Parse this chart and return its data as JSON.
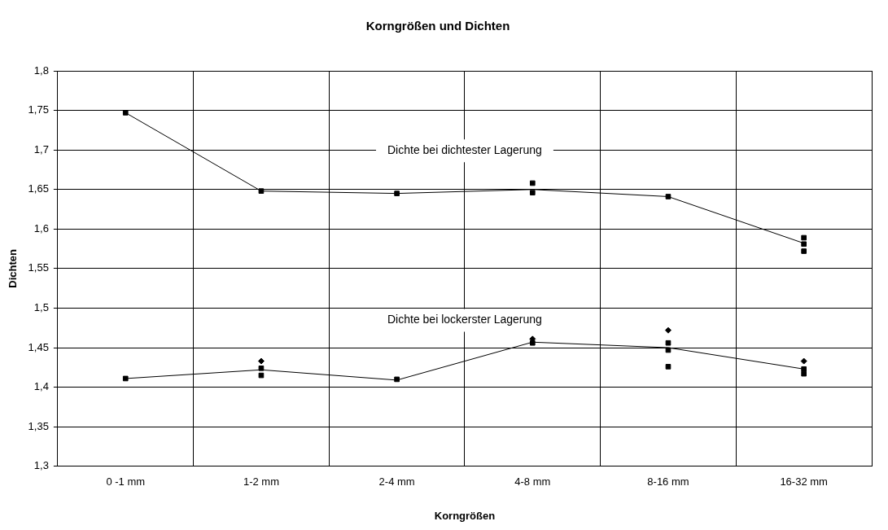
{
  "chart_data": {
    "type": "line",
    "title": "Korngrößen und Dichten",
    "xlabel": "Korngrößen",
    "ylabel": "Dichten",
    "categories": [
      "0 -1 mm",
      "1-2 mm",
      "2-4 mm",
      "4-8 mm",
      "8-16 mm",
      "16-32 mm"
    ],
    "ylim": [
      1.3,
      1.8
    ],
    "yticks": [
      {
        "value": 1.3,
        "label": "1,3"
      },
      {
        "value": 1.35,
        "label": "1,35"
      },
      {
        "value": 1.4,
        "label": "1,4"
      },
      {
        "value": 1.45,
        "label": "1,45"
      },
      {
        "value": 1.5,
        "label": "1,5"
      },
      {
        "value": 1.55,
        "label": "1,55"
      },
      {
        "value": 1.6,
        "label": "1,6"
      },
      {
        "value": 1.65,
        "label": "1,65"
      },
      {
        "value": 1.7,
        "label": "1,7"
      },
      {
        "value": 1.75,
        "label": "1,75"
      },
      {
        "value": 1.8,
        "label": "1,8"
      }
    ],
    "grid": true,
    "legend": false,
    "series": [
      {
        "name": "Dichte bei dichtester Lagerung",
        "marker": "none",
        "color": "#000000",
        "values": [
          1.747,
          1.648,
          1.645,
          1.65,
          1.641,
          1.582
        ]
      },
      {
        "name": "Dichte bei lockerster Lagerung",
        "marker": "none",
        "color": "#000000",
        "values": [
          1.411,
          1.422,
          1.409,
          1.457,
          1.45,
          1.423
        ]
      },
      {
        "type": "scatter",
        "marker": "square",
        "color": "#000000",
        "x": [
          "0 -1 mm",
          "1-2 mm",
          "2-4 mm",
          "4-8 mm",
          "8-16 mm",
          "16-32 mm",
          "0 -1 mm",
          "1-2 mm",
          "1-2 mm",
          "2-4 mm",
          "4-8 mm",
          "8-16 mm",
          "8-16 mm",
          "8-16 mm",
          "16-32 mm",
          "16-32 mm"
        ],
        "values": [
          1.747,
          1.648,
          1.645,
          1.646,
          1.641,
          1.589,
          1.411,
          1.424,
          1.415,
          1.41,
          1.456,
          1.456,
          1.447,
          1.426,
          1.423,
          1.417
        ]
      },
      {
        "type": "scatter",
        "marker": "diamond",
        "color": "#000000",
        "x": [
          "1-2 mm",
          "4-8 mm",
          "8-16 mm",
          "16-32 mm"
        ],
        "values": [
          1.433,
          1.461,
          1.472,
          1.433
        ]
      },
      {
        "type": "scatter",
        "marker": "square",
        "color": "#000000",
        "x": [
          "4-8 mm",
          "16-32 mm",
          "16-32 mm"
        ],
        "values": [
          1.658,
          1.581,
          1.572
        ]
      }
    ]
  }
}
